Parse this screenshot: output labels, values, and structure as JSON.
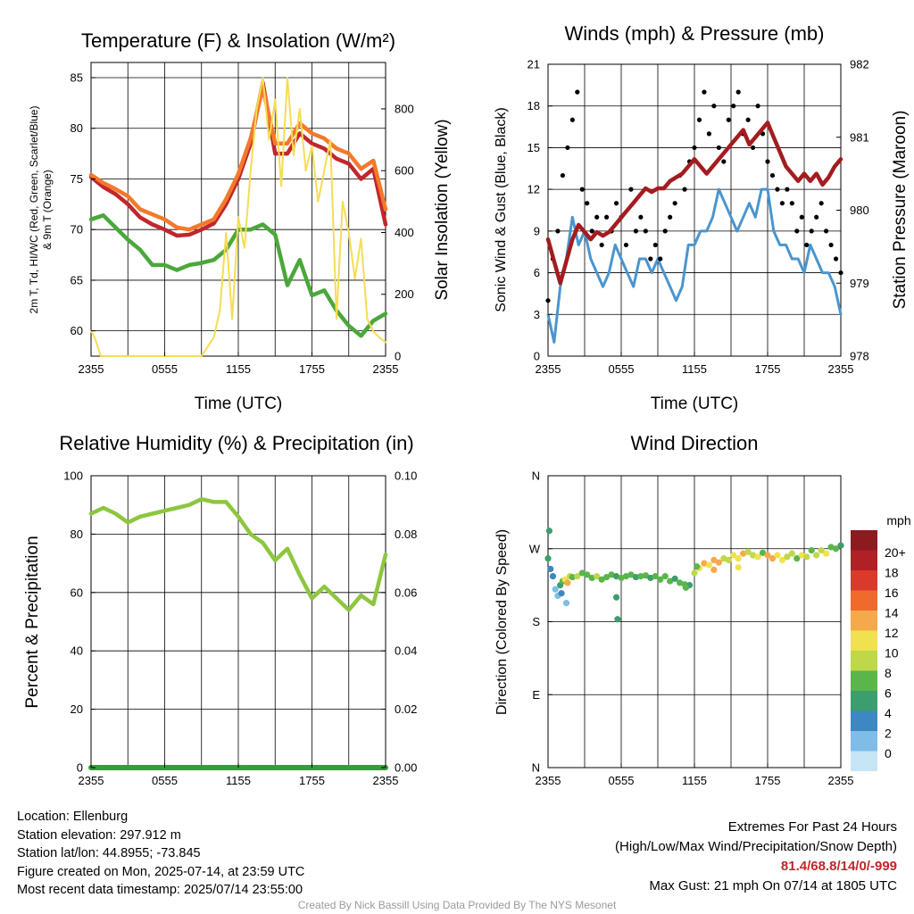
{
  "chart_data": [
    {
      "type": "line",
      "title": "Temperature (F) & Insolation (W/m²)",
      "xlabel": "Time (UTC)",
      "ylabel_lines": [
        "2m T, Td, HI/WC (Red, Green, Scarlet/Blue)",
        "& 9m T (Orange)"
      ],
      "ylabel2": "Solar Insolation (Yellow)",
      "x_ticks": [
        "2355",
        "0555",
        "1155",
        "1755",
        "2355"
      ],
      "ylim": [
        57.5,
        86.5
      ],
      "y_ticks": [
        60,
        65,
        70,
        75,
        80,
        85
      ],
      "y2lim": [
        0,
        950
      ],
      "y2_ticks": [
        0,
        200,
        400,
        600,
        800
      ],
      "grid": true,
      "series": [
        {
          "color": "#c0272d",
          "axis": "left",
          "x": [
            0,
            1,
            2,
            3,
            4,
            5,
            6,
            7,
            8,
            9,
            10,
            11,
            12,
            13,
            14,
            15,
            16,
            17,
            18,
            19,
            20,
            21,
            22,
            23,
            24
          ],
          "values": [
            75.2,
            74.2,
            73.5,
            72.5,
            71.2,
            70.5,
            70.0,
            69.4,
            69.5,
            70.0,
            70.6,
            72.5,
            75.0,
            78.5,
            84.5,
            77.5,
            77.5,
            79.5,
            78.5,
            78.0,
            77.0,
            76.5,
            75.0,
            76.0,
            70.5
          ]
        },
        {
          "color": "#f4792b",
          "axis": "left",
          "x": [
            0,
            1,
            2,
            3,
            4,
            5,
            6,
            7,
            8,
            9,
            10,
            11,
            12,
            13,
            14,
            15,
            16,
            17,
            18,
            19,
            20,
            21,
            22,
            23,
            24
          ],
          "values": [
            75.4,
            74.6,
            74.0,
            73.3,
            72.0,
            71.5,
            71.0,
            70.2,
            70.0,
            70.5,
            71.0,
            73.0,
            75.5,
            79.0,
            84.0,
            78.5,
            78.5,
            80.5,
            79.5,
            79.0,
            78.0,
            77.5,
            76.0,
            76.8,
            72.0
          ]
        },
        {
          "color": "#4aa83a",
          "axis": "left",
          "x": [
            0,
            1,
            2,
            3,
            4,
            5,
            6,
            7,
            8,
            9,
            10,
            11,
            12,
            13,
            14,
            15,
            16,
            17,
            18,
            19,
            20,
            21,
            22,
            23,
            24
          ],
          "values": [
            71.0,
            71.4,
            70.2,
            69.0,
            68.0,
            66.5,
            66.5,
            66.0,
            66.5,
            66.7,
            67.0,
            68.0,
            70.0,
            70.0,
            70.5,
            69.5,
            64.5,
            67.0,
            63.5,
            64.0,
            62.0,
            60.5,
            59.5,
            61.0,
            61.7
          ]
        },
        {
          "color": "#f5dd55",
          "axis": "right",
          "x": [
            0,
            0.3,
            0.8,
            2,
            3,
            4,
            5,
            6,
            7,
            8,
            9,
            9.5,
            10,
            10.5,
            11,
            11.5,
            12,
            12.5,
            13,
            13.5,
            14,
            14.5,
            15,
            15.5,
            16,
            16.5,
            17,
            17.5,
            18,
            18.5,
            19,
            19.5,
            20,
            20.5,
            21,
            21.5,
            22,
            22.5,
            23,
            23.5,
            24
          ],
          "values": [
            80,
            60,
            0,
            0,
            0,
            0,
            0,
            0,
            0,
            0,
            0,
            30,
            60,
            150,
            400,
            120,
            450,
            350,
            600,
            800,
            900,
            700,
            830,
            550,
            900,
            650,
            800,
            600,
            680,
            500,
            600,
            700,
            120,
            500,
            400,
            250,
            380,
            120,
            80,
            60,
            45
          ]
        }
      ]
    },
    {
      "type": "line",
      "title": "Winds (mph) & Pressure (mb)",
      "xlabel": "Time (UTC)",
      "ylabel": "Sonic Wind & Gust (Blue, Black)",
      "ylabel2": "Station Pressure (Maroon)",
      "x_ticks": [
        "2355",
        "0555",
        "1155",
        "1755",
        "2355"
      ],
      "ylim": [
        0,
        21
      ],
      "y_ticks": [
        0,
        3,
        6,
        9,
        12,
        15,
        18,
        21
      ],
      "y2lim": [
        978,
        982
      ],
      "y2_ticks": [
        978,
        979,
        980,
        981,
        982
      ],
      "grid": true,
      "series": [
        {
          "color": "#4a95cf",
          "kind": "line",
          "axis": "left",
          "x": [
            0,
            0.5,
            1,
            1.5,
            2,
            2.5,
            3,
            3.5,
            4,
            4.5,
            5,
            5.5,
            6,
            6.5,
            7,
            7.5,
            8,
            8.5,
            9,
            9.5,
            10,
            10.5,
            11,
            11.5,
            12,
            12.5,
            13,
            13.5,
            14,
            14.5,
            15,
            15.5,
            16,
            16.5,
            17,
            17.5,
            18,
            18.5,
            19,
            19.5,
            20,
            20.5,
            21,
            21.5,
            22,
            22.5,
            23,
            23.5,
            24
          ],
          "values": [
            3,
            1,
            5,
            7,
            10,
            8,
            9,
            7,
            6,
            5,
            6,
            8,
            7,
            6,
            5,
            7,
            7,
            6,
            7,
            6,
            5,
            4,
            5,
            8,
            8,
            9,
            9,
            10,
            12,
            11,
            10,
            9,
            10,
            11,
            10,
            12,
            12,
            9,
            8,
            8,
            7,
            7,
            6,
            8,
            7,
            6,
            6,
            5,
            3
          ]
        },
        {
          "color": "#000000",
          "kind": "scatter",
          "axis": "left",
          "x": [
            0,
            0.4,
            0.8,
            1.2,
            1.6,
            2,
            2.4,
            2.8,
            3.2,
            3.6,
            4,
            4.4,
            4.8,
            5.2,
            5.6,
            6,
            6.4,
            6.8,
            7.2,
            7.6,
            8,
            8.4,
            8.8,
            9.2,
            9.6,
            10,
            10.4,
            10.8,
            11.2,
            11.6,
            12,
            12.4,
            12.8,
            13.2,
            13.6,
            14,
            14.4,
            14.8,
            15.2,
            15.6,
            16,
            16.4,
            16.8,
            17.2,
            17.6,
            18,
            18.4,
            18.8,
            19.2,
            19.6,
            20,
            20.4,
            20.8,
            21.2,
            21.6,
            22,
            22.4,
            22.8,
            23.2,
            23.6,
            24
          ],
          "values": [
            4,
            7,
            9,
            13,
            15,
            17,
            19,
            12,
            11,
            9,
            10,
            8,
            10,
            9,
            11,
            10,
            8,
            12,
            9,
            10,
            9,
            7,
            8,
            7,
            9,
            10,
            11,
            13,
            12,
            14,
            15,
            17,
            19,
            16,
            18,
            15,
            14,
            17,
            18,
            19,
            16,
            17,
            15,
            18,
            16,
            14,
            13,
            12,
            11,
            12,
            11,
            9,
            10,
            8,
            9,
            10,
            11,
            9,
            8,
            7,
            6
          ]
        },
        {
          "color": "#a31c1f",
          "kind": "line",
          "axis": "right",
          "x": [
            0,
            0.5,
            1,
            1.5,
            2,
            2.5,
            3,
            3.5,
            4,
            4.5,
            5,
            5.5,
            6,
            6.5,
            7,
            7.5,
            8,
            8.5,
            9,
            9.5,
            10,
            10.5,
            11,
            11.5,
            12,
            12.5,
            13,
            13.5,
            14,
            14.5,
            15,
            15.5,
            16,
            16.5,
            17,
            17.5,
            18,
            18.5,
            19,
            19.5,
            20,
            20.5,
            21,
            21.5,
            22,
            22.5,
            23,
            23.5,
            24
          ],
          "values": [
            979.6,
            979.3,
            979.0,
            979.3,
            979.6,
            979.8,
            979.7,
            979.6,
            979.7,
            979.65,
            979.7,
            979.8,
            979.9,
            980.0,
            980.1,
            980.2,
            980.3,
            980.25,
            980.3,
            980.3,
            980.4,
            980.45,
            980.5,
            980.6,
            980.7,
            980.6,
            980.5,
            980.6,
            980.7,
            980.8,
            980.9,
            981.0,
            981.1,
            980.9,
            981.0,
            981.1,
            981.2,
            981.0,
            980.8,
            980.6,
            980.5,
            980.4,
            980.5,
            980.4,
            980.5,
            980.35,
            980.45,
            980.6,
            980.7
          ]
        }
      ]
    },
    {
      "type": "line",
      "title": "Relative Humidity (%) & Precipitation (in)",
      "ylabel": "Percent & Precipitation",
      "x_ticks": [
        "2355",
        "0555",
        "1155",
        "1755",
        "2355"
      ],
      "ylim": [
        0,
        100
      ],
      "y_ticks": [
        0,
        20,
        40,
        60,
        80,
        100
      ],
      "y2lim": [
        0,
        0.1
      ],
      "y2_ticks": [
        "0.00",
        "0.02",
        "0.04",
        "0.06",
        "0.08",
        "0.10"
      ],
      "grid": true,
      "series": [
        {
          "color": "#8dc63f",
          "axis": "left",
          "x": [
            0,
            1,
            2,
            3,
            4,
            5,
            6,
            7,
            8,
            9,
            10,
            11,
            12,
            13,
            14,
            15,
            16,
            17,
            18,
            19,
            20,
            21,
            22,
            23,
            24
          ],
          "values": [
            87,
            89,
            87,
            84,
            86,
            87,
            88,
            89,
            90,
            92,
            91,
            91,
            86,
            80,
            77,
            71,
            75,
            66,
            58,
            62,
            58,
            54,
            59,
            56,
            73
          ]
        },
        {
          "color": "#3a9a3f",
          "axis": "right",
          "x": [
            0,
            24
          ],
          "values": [
            0,
            0
          ]
        }
      ]
    },
    {
      "type": "scatter",
      "title": "Wind Direction",
      "ylabel": "Direction (Colored By Speed)",
      "x_ticks": [
        "2355",
        "0555",
        "1155",
        "1755",
        "2355"
      ],
      "y_ticks": [
        "N",
        "E",
        "S",
        "W",
        "N"
      ],
      "ylim": [
        0,
        360
      ],
      "grid": true,
      "legend": {
        "title": "mph",
        "labels": [
          "0",
          "2",
          "4",
          "6",
          "8",
          "10",
          "12",
          "14",
          "16",
          "18",
          "20+"
        ],
        "colors": [
          "#c6e6f6",
          "#7fbce7",
          "#3d87c3",
          "#3c9e6e",
          "#5ab54b",
          "#bfd84a",
          "#f0e14f",
          "#f6a94a",
          "#ef6a2c",
          "#d93a2b",
          "#b02025",
          "#8c1a1f"
        ]
      },
      "points": {
        "x": [
          0,
          0.2,
          0.4,
          0.6,
          0.8,
          1,
          1.2,
          1.4,
          1.6,
          1.8,
          2,
          2.4,
          2.8,
          3.2,
          3.6,
          4,
          4.4,
          4.8,
          5.2,
          5.6,
          6,
          6.4,
          6.8,
          7.2,
          7.6,
          8,
          8.4,
          8.8,
          9.2,
          9.6,
          10,
          10.4,
          10.8,
          11.2,
          11.6,
          12,
          12.4,
          12.8,
          13.2,
          13.6,
          14,
          14.4,
          14.8,
          15.2,
          15.6,
          16,
          16.4,
          16.8,
          17.2,
          17.6,
          18,
          18.4,
          18.8,
          19.2,
          19.6,
          20,
          20.4,
          20.8,
          21.2,
          21.6,
          22,
          22.4,
          22.8,
          23.2,
          23.6,
          24,
          1.1,
          1.5,
          5.6,
          5.7,
          0.1,
          11.3,
          12.2,
          13.6,
          15.6
        ],
        "dir": [
          258,
          245,
          236,
          220,
          212,
          225,
          230,
          232,
          228,
          236,
          235,
          236,
          240,
          238,
          234,
          236,
          232,
          235,
          238,
          236,
          234,
          236,
          238,
          235,
          236,
          237,
          234,
          236,
          232,
          236,
          230,
          233,
          228,
          226,
          225,
          240,
          246,
          252,
          250,
          256,
          253,
          258,
          256,
          262,
          258,
          264,
          266,
          262,
          260,
          265,
          262,
          258,
          262,
          256,
          260,
          264,
          258,
          262,
          260,
          268,
          262,
          268,
          264,
          272,
          270,
          274,
          215,
          203,
          210,
          183,
          292,
          222,
          248,
          244,
          247
        ],
        "speed": [
          4,
          3,
          2,
          1,
          1,
          4,
          6,
          10,
          13,
          8,
          7,
          9,
          7,
          6,
          7,
          8,
          6,
          7,
          6,
          4,
          6,
          7,
          6,
          5,
          6,
          7,
          5,
          6,
          6,
          7,
          6,
          5,
          6,
          7,
          5,
          9,
          10,
          12,
          11,
          13,
          12,
          8,
          9,
          11,
          10,
          12,
          8,
          9,
          10,
          7,
          12,
          13,
          11,
          10,
          9,
          8,
          7,
          10,
          9,
          6,
          8,
          9,
          10,
          7,
          6,
          4,
          2,
          1,
          4,
          4,
          4,
          6,
          6,
          12,
          11
        ]
      }
    }
  ],
  "station": {
    "location": "Location: Ellenburg",
    "elevation": "Station elevation: 297.912 m",
    "latlon": "Station lat/lon: 44.8955; -73.845",
    "created": "Figure created on Mon, 2025-07-14, at 23:59 UTC",
    "recent": "Most recent data timestamp: 2025/07/14 23:55:00"
  },
  "extremes": {
    "title": "Extremes For Past 24 Hours",
    "subtitle": "(High/Low/Max Wind/Precipitation/Snow Depth)",
    "values": "81.4/68.8/14/0/-999",
    "gust": "Max Gust: 21 mph On 07/14 at 1805 UTC"
  },
  "credit": "Created By Nick Bassill Using Data Provided By The NYS Mesonet"
}
